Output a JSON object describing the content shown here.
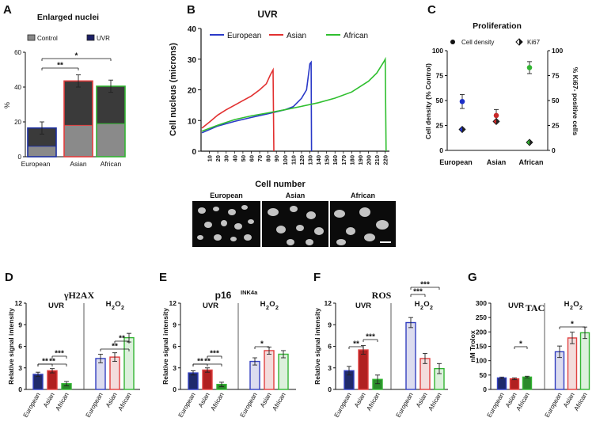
{
  "figure": {
    "panels": [
      "A",
      "B",
      "C",
      "D",
      "E",
      "F",
      "G"
    ],
    "microscopy": {
      "labels": [
        "European",
        "Asian",
        "African"
      ],
      "scale_bar": "scale-bar"
    }
  },
  "chart_data": [
    {
      "panel": "A",
      "type": "bar",
      "title": "Enlarged nuclei",
      "ylabel": "%",
      "ylim": [
        0,
        60
      ],
      "yticks": [
        0,
        20,
        40,
        60
      ],
      "categories": [
        "European",
        "Asian",
        "African"
      ],
      "legend": [
        "Control",
        "UVR"
      ],
      "series": [
        {
          "name": "Control",
          "values": [
            6,
            18,
            19
          ],
          "color": "#8a8a8a"
        },
        {
          "name": "UVR",
          "values": [
            16.5,
            43.5,
            40.5
          ],
          "errors": [
            3.5,
            3.5,
            3.5
          ],
          "color": "#3a3a3a"
        }
      ],
      "edge_colors": [
        "#1c2fa0",
        "#e23c3c",
        "#33b533"
      ],
      "significance": [
        {
          "from": 0,
          "to": 1,
          "label": "**"
        },
        {
          "from": 0,
          "to": 2,
          "label": "*"
        }
      ]
    },
    {
      "panel": "B",
      "type": "line",
      "title": "UVR",
      "xlabel": "Cell number",
      "ylabel": "Cell nucleus (microns)",
      "ylim": [
        0,
        40
      ],
      "yticks": [
        0,
        10,
        20,
        30,
        40
      ],
      "xlim": [
        0,
        225
      ],
      "xticks": [
        10,
        20,
        30,
        40,
        50,
        60,
        70,
        80,
        90,
        100,
        110,
        120,
        130,
        140,
        150,
        160,
        170,
        180,
        190,
        200,
        210,
        220
      ],
      "series": [
        {
          "name": "European",
          "color": "#2a39c8",
          "points": [
            [
              1,
              6
            ],
            [
              20,
              8.2
            ],
            [
              40,
              9.7
            ],
            [
              60,
              11
            ],
            [
              80,
              12.2
            ],
            [
              100,
              13.5
            ],
            [
              110,
              14.5
            ],
            [
              120,
              17.2
            ],
            [
              126,
              20
            ],
            [
              130,
              28.5
            ],
            [
              131.5,
              29
            ],
            [
              132,
              0
            ]
          ]
        },
        {
          "name": "Asian",
          "color": "#e23030",
          "points": [
            [
              1,
              7.5
            ],
            [
              10,
              9.5
            ],
            [
              20,
              11.8
            ],
            [
              30,
              13.5
            ],
            [
              40,
              15
            ],
            [
              50,
              16.5
            ],
            [
              60,
              18
            ],
            [
              70,
              20
            ],
            [
              78,
              22
            ],
            [
              83,
              25
            ],
            [
              86,
              26.5
            ],
            [
              87,
              0
            ]
          ]
        },
        {
          "name": "African",
          "color": "#2fbf2f",
          "points": [
            [
              1,
              6.5
            ],
            [
              20,
              8.5
            ],
            [
              40,
              10.3
            ],
            [
              60,
              11.5
            ],
            [
              80,
              12.5
            ],
            [
              100,
              13.5
            ],
            [
              120,
              14.6
            ],
            [
              140,
              15.8
            ],
            [
              160,
              17.3
            ],
            [
              180,
              19.3
            ],
            [
              200,
              22.8
            ],
            [
              210,
              25.5
            ],
            [
              218,
              29
            ],
            [
              220,
              30
            ],
            [
              221,
              0
            ]
          ]
        }
      ]
    },
    {
      "panel": "C",
      "type": "scatter",
      "title": "Proliferation",
      "ylabel": "Cell density (% Control)",
      "ylabel_right": "% Ki67- positive cells",
      "ylim": [
        0,
        100
      ],
      "yticks": [
        0,
        25,
        50,
        75,
        100
      ],
      "categories": [
        "European",
        "Asian",
        "African"
      ],
      "legend": [
        "Cell density",
        "Ki67"
      ],
      "series": [
        {
          "name": "Cell density",
          "values": [
            49,
            35,
            83
          ],
          "errors": [
            7,
            6,
            6
          ]
        },
        {
          "name": "Ki67",
          "values": [
            21,
            29,
            8
          ]
        }
      ],
      "colors": [
        "#1c2fc8",
        "#c82828",
        "#33b533"
      ]
    },
    {
      "panel": "D",
      "type": "bar",
      "title": "γH2AX",
      "ylabel": "Relative signal intensity",
      "ylim": [
        0,
        12
      ],
      "yticks": [
        0,
        3,
        6,
        9,
        12
      ],
      "groups": [
        "UVR",
        "H2O2"
      ],
      "categories": [
        "European",
        "Asian",
        "African"
      ],
      "series": [
        {
          "name": "UVR",
          "values": [
            2.1,
            2.6,
            0.8
          ],
          "errors": [
            0.3,
            0.3,
            0.3
          ]
        },
        {
          "name": "H2O2",
          "values": [
            4.3,
            4.5,
            7.2
          ],
          "errors": [
            0.6,
            0.6,
            0.6
          ]
        }
      ],
      "significance": [
        {
          "group": 0,
          "from": 0,
          "to": 1,
          "label": "**"
        },
        {
          "group": 0,
          "from": 0,
          "to": 2,
          "label": "**"
        },
        {
          "group": 0,
          "from": 1,
          "to": 2,
          "label": "***"
        },
        {
          "group": 1,
          "from": 0,
          "to": 2,
          "label": "**"
        },
        {
          "group": 1,
          "from": 1,
          "to": 2,
          "label": "**"
        }
      ]
    },
    {
      "panel": "E",
      "type": "bar",
      "title": "p16",
      "title_sup": "INK4a",
      "ylabel": "Relative signal intensity",
      "ylim": [
        0,
        12
      ],
      "yticks": [
        0,
        3,
        6,
        9,
        12
      ],
      "groups": [
        "UVR",
        "H2O2"
      ],
      "categories": [
        "European",
        "Asian",
        "African"
      ],
      "series": [
        {
          "name": "UVR",
          "values": [
            2.3,
            2.7,
            0.7
          ],
          "errors": [
            0.3,
            0.3,
            0.3
          ]
        },
        {
          "name": "H2O2",
          "values": [
            3.9,
            5.4,
            4.9
          ],
          "errors": [
            0.5,
            0.5,
            0.5
          ]
        }
      ],
      "significance": [
        {
          "group": 0,
          "from": 0,
          "to": 1,
          "label": "**"
        },
        {
          "group": 0,
          "from": 0,
          "to": 2,
          "label": "**"
        },
        {
          "group": 0,
          "from": 1,
          "to": 2,
          "label": "***"
        },
        {
          "group": 1,
          "from": 0,
          "to": 1,
          "label": "*"
        }
      ]
    },
    {
      "panel": "F",
      "type": "bar",
      "title": "ROS",
      "ylabel": "Relative signal intensity",
      "ylim": [
        0,
        12
      ],
      "yticks": [
        0,
        3,
        6,
        9,
        12
      ],
      "groups": [
        "UVR",
        "H2O2"
      ],
      "categories": [
        "European",
        "Asian",
        "African"
      ],
      "series": [
        {
          "name": "UVR",
          "values": [
            2.6,
            5.5,
            1.4
          ],
          "errors": [
            0.6,
            0.6,
            0.6
          ]
        },
        {
          "name": "H2O2",
          "values": [
            9.3,
            4.3,
            2.9
          ],
          "errors": [
            0.7,
            0.7,
            0.7
          ]
        }
      ],
      "significance": [
        {
          "group": 0,
          "from": 0,
          "to": 1,
          "label": "**"
        },
        {
          "group": 0,
          "from": 1,
          "to": 2,
          "label": "***"
        },
        {
          "group": 1,
          "from": 0,
          "to": 1,
          "label": "***"
        },
        {
          "group": 1,
          "from": 0,
          "to": 2,
          "label": "***"
        }
      ]
    },
    {
      "panel": "G",
      "type": "bar",
      "title": "TAC",
      "ylabel": "nM Trolox",
      "ylim": [
        0,
        300
      ],
      "yticks": [
        0,
        50,
        100,
        150,
        200,
        250,
        300
      ],
      "groups": [
        "UVR",
        "H2O2"
      ],
      "categories": [
        "European",
        "Asian",
        "African"
      ],
      "series": [
        {
          "name": "UVR",
          "values": [
            40,
            37,
            43
          ],
          "errors": [
            3,
            3,
            3
          ]
        },
        {
          "name": "H2O2",
          "values": [
            131,
            179,
            197
          ],
          "errors": [
            20,
            20,
            20
          ]
        }
      ],
      "significance": [
        {
          "group": 0,
          "from": 1,
          "to": 2,
          "label": "*"
        },
        {
          "group": 1,
          "from": 0,
          "to": 2,
          "label": "*"
        }
      ]
    }
  ],
  "colors": {
    "european_dark": "#1f2a6b",
    "asian_dark": "#b02020",
    "african_dark": "#2a8a2a",
    "european_light": "#dcdcef",
    "asian_light": "#f3dcdc",
    "african_light": "#dcf0dc",
    "european_edge": "#3340c0",
    "asian_edge": "#e04040",
    "african_edge": "#33b533"
  }
}
